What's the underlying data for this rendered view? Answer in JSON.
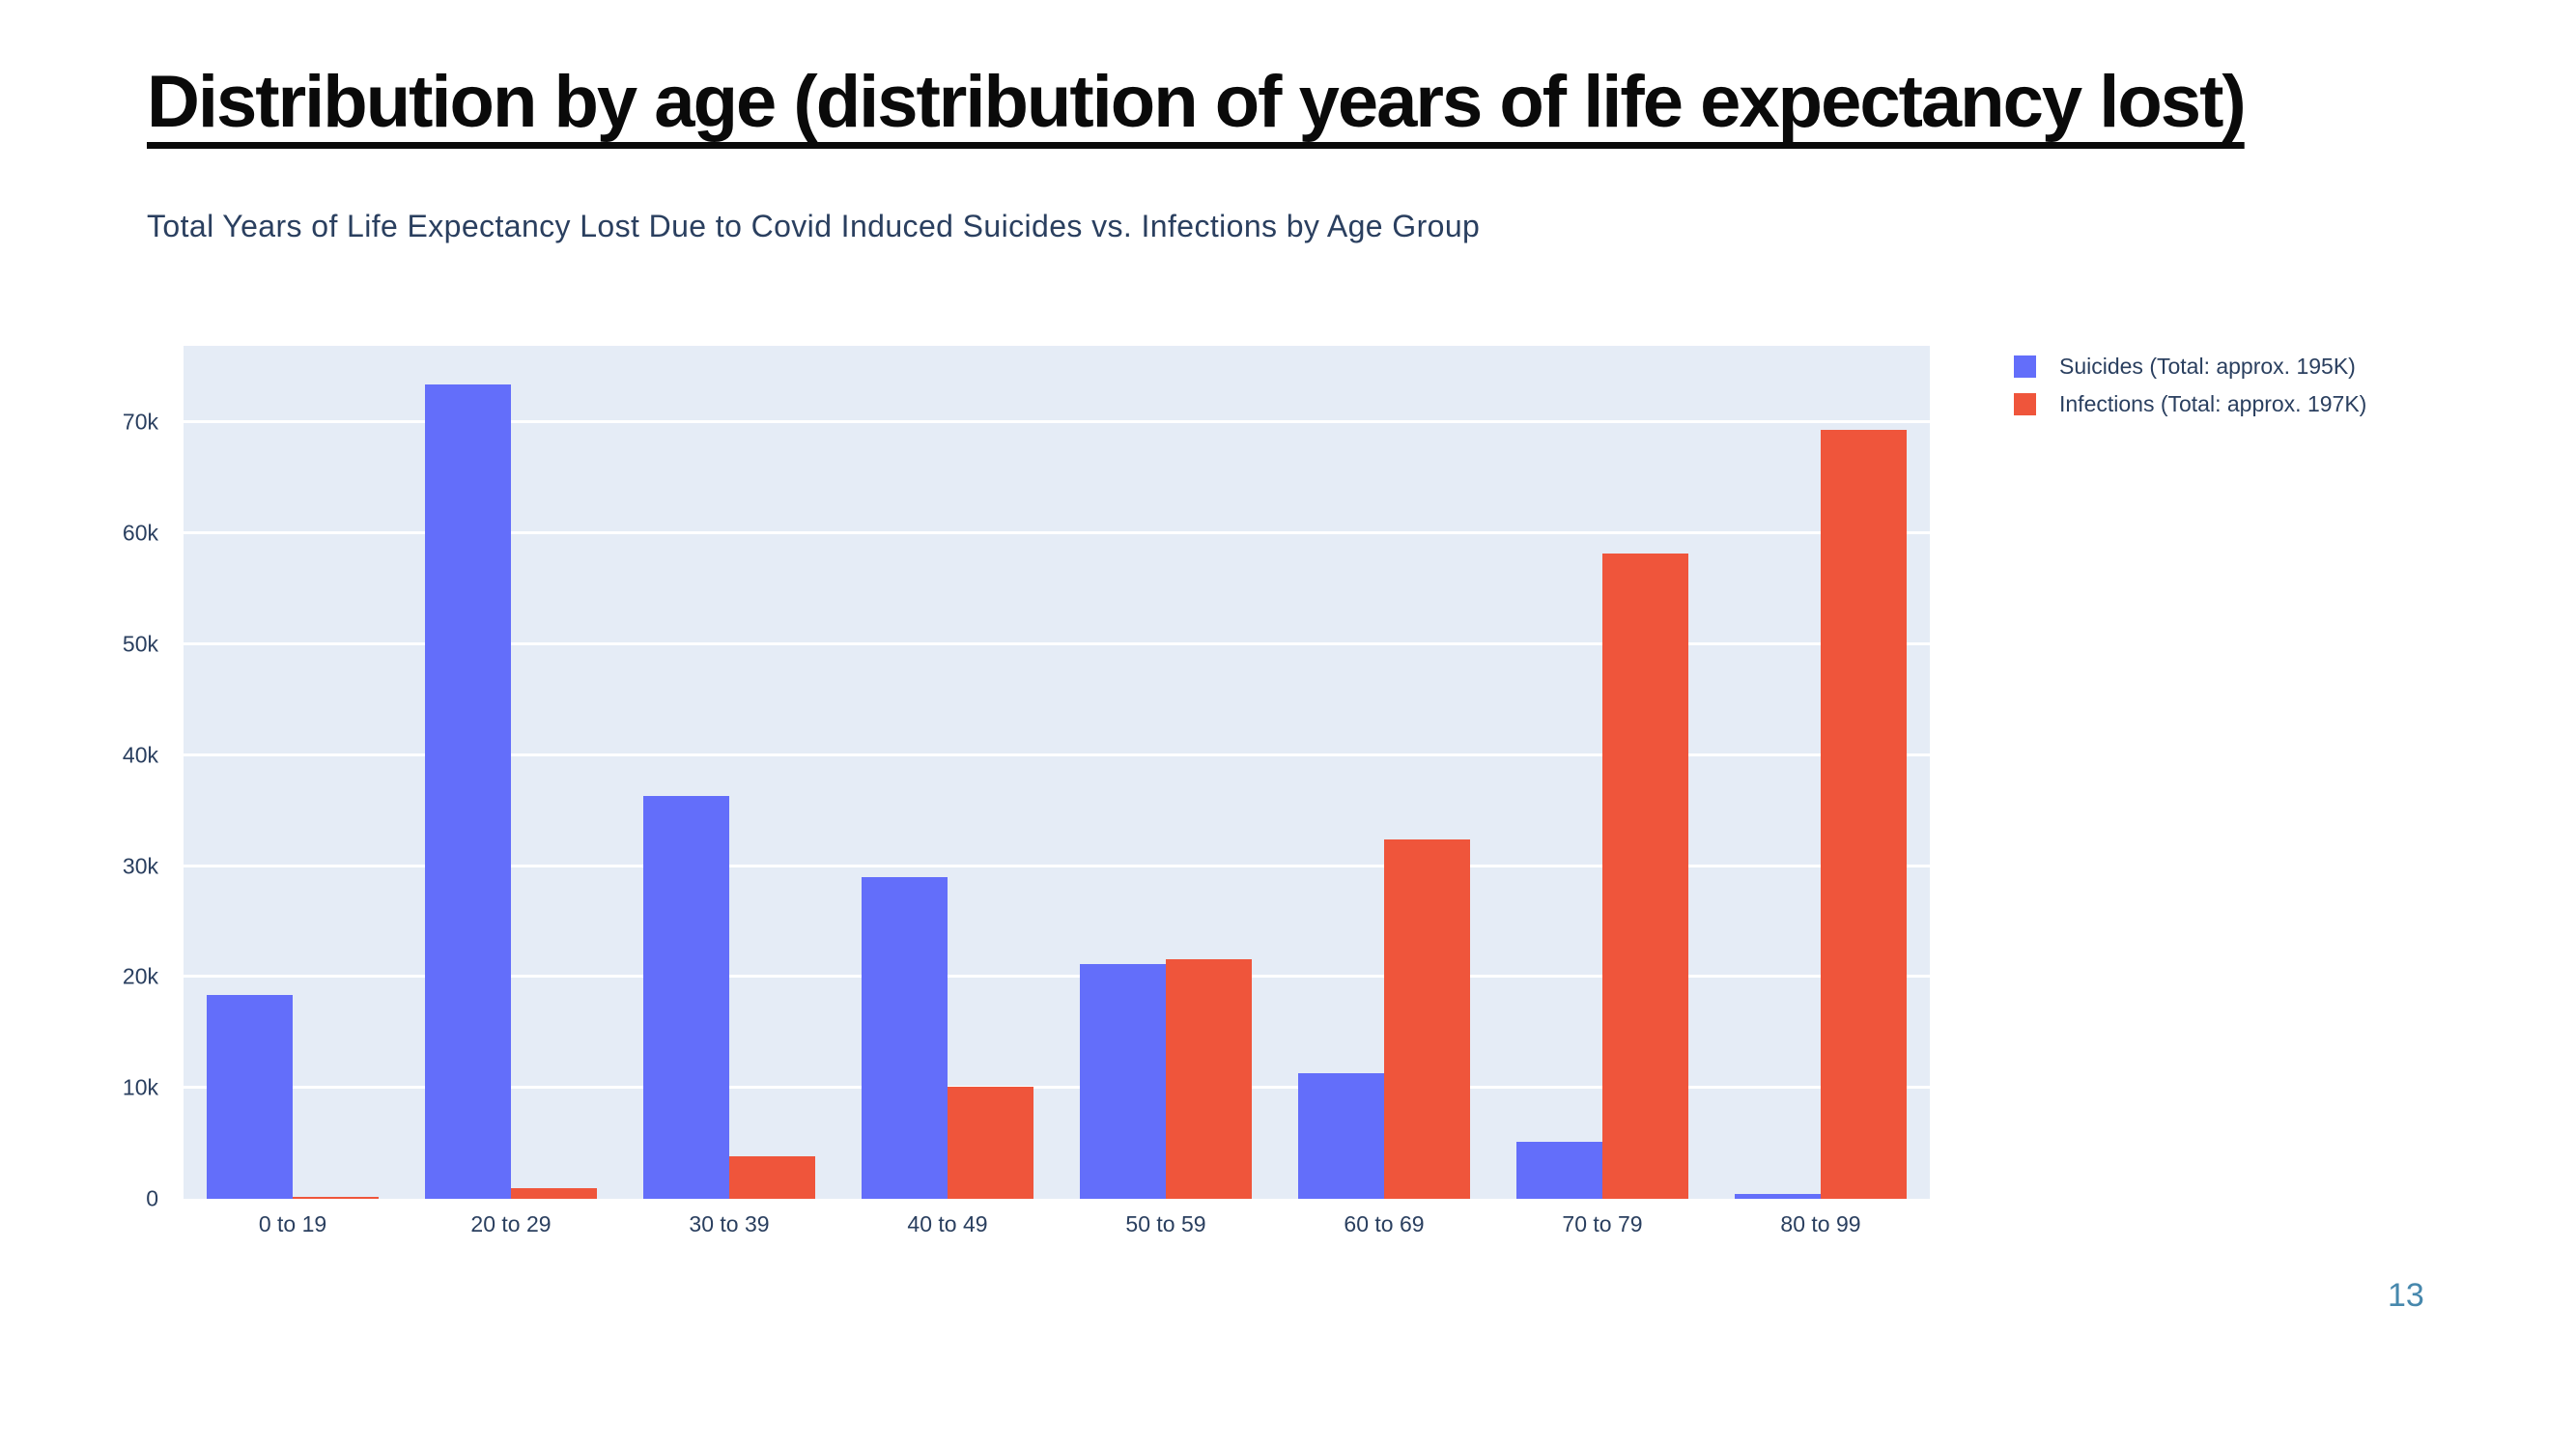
{
  "page": {
    "title": "Distribution by age (distribution of years of life expectancy lost)",
    "page_number": "13"
  },
  "colors": {
    "suicides": "#636EFA",
    "infections": "#EF553B",
    "plot_background": "#E5ECF6",
    "gridline": "#ffffff",
    "axis_text": "#2a3f5f",
    "title_text": "#0a0a0a",
    "page_number_text": "#4788ad"
  },
  "chart_data": {
    "type": "bar",
    "title": "Total Years of Life Expectancy Lost Due to Covid Induced Suicides vs. Infections by Age Group",
    "xlabel": "",
    "ylabel": "",
    "categories": [
      "0 to 19",
      "20 to 29",
      "30 to 39",
      "40 to 49",
      "50 to 59",
      "60 to 69",
      "70 to 79",
      "80 to 99"
    ],
    "series": [
      {
        "name": "Suicides (Total: approx. 195K)",
        "color": "#636EFA",
        "values": [
          18400,
          73400,
          36300,
          29000,
          21200,
          11300,
          5100,
          400
        ]
      },
      {
        "name": "Infections (Total: approx. 197K)",
        "color": "#EF553B",
        "values": [
          150,
          1000,
          3800,
          10100,
          21600,
          32400,
          58200,
          69300
        ]
      }
    ],
    "ylim": [
      0,
      76900
    ],
    "yticks": [
      {
        "value": 0,
        "label": "0"
      },
      {
        "value": 10000,
        "label": "10k"
      },
      {
        "value": 20000,
        "label": "20k"
      },
      {
        "value": 30000,
        "label": "30k"
      },
      {
        "value": 40000,
        "label": "40k"
      },
      {
        "value": 50000,
        "label": "50k"
      },
      {
        "value": 60000,
        "label": "60k"
      },
      {
        "value": 70000,
        "label": "70k"
      }
    ],
    "grid": true,
    "legend_position": "outside-top-right"
  }
}
